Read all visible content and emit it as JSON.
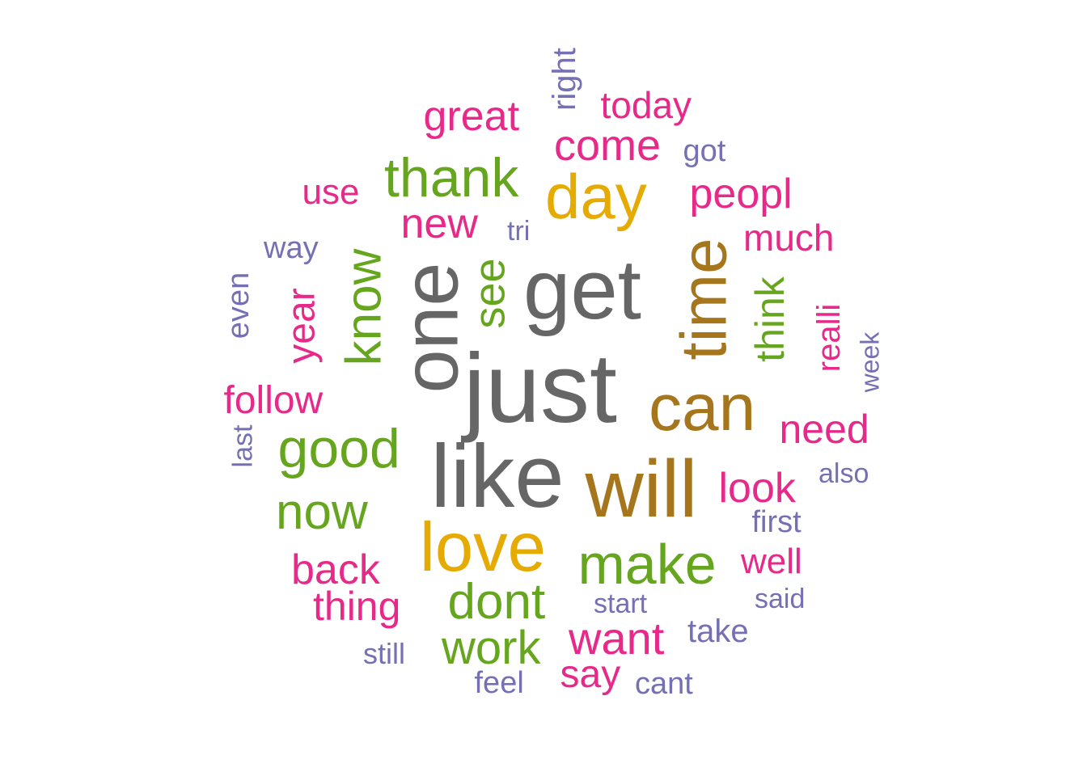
{
  "palette": {
    "gray": "#666666",
    "brown": "#A6761D",
    "gold": "#E6AB02",
    "green": "#66A61E",
    "magenta": "#E7298A",
    "purple": "#7570B3"
  },
  "words": [
    {
      "text": "just",
      "color": "gray"
    },
    {
      "text": "get",
      "color": "gray"
    },
    {
      "text": "like",
      "color": "gray"
    },
    {
      "text": "one",
      "color": "gray",
      "rotated": true
    },
    {
      "text": "will",
      "color": "brown"
    },
    {
      "text": "can",
      "color": "brown"
    },
    {
      "text": "time",
      "color": "brown",
      "rotated": true
    },
    {
      "text": "love",
      "color": "gold"
    },
    {
      "text": "day",
      "color": "gold"
    },
    {
      "text": "make",
      "color": "green"
    },
    {
      "text": "thank",
      "color": "green"
    },
    {
      "text": "good",
      "color": "green"
    },
    {
      "text": "know",
      "color": "green",
      "rotated": true
    },
    {
      "text": "now",
      "color": "green"
    },
    {
      "text": "dont",
      "color": "green"
    },
    {
      "text": "see",
      "color": "green",
      "rotated": true
    },
    {
      "text": "work",
      "color": "green"
    },
    {
      "text": "think",
      "color": "green",
      "rotated": true
    },
    {
      "text": "want",
      "color": "magenta"
    },
    {
      "text": "new",
      "color": "magenta"
    },
    {
      "text": "come",
      "color": "magenta"
    },
    {
      "text": "peopl",
      "color": "magenta"
    },
    {
      "text": "back",
      "color": "magenta"
    },
    {
      "text": "look",
      "color": "magenta"
    },
    {
      "text": "thing",
      "color": "magenta"
    },
    {
      "text": "great",
      "color": "magenta"
    },
    {
      "text": "need",
      "color": "magenta"
    },
    {
      "text": "follow",
      "color": "magenta"
    },
    {
      "text": "year",
      "color": "magenta",
      "rotated": true
    },
    {
      "text": "today",
      "color": "magenta"
    },
    {
      "text": "say",
      "color": "magenta"
    },
    {
      "text": "much",
      "color": "magenta"
    },
    {
      "text": "well",
      "color": "magenta"
    },
    {
      "text": "use",
      "color": "magenta"
    },
    {
      "text": "realli",
      "color": "magenta",
      "rotated": true
    },
    {
      "text": "right",
      "color": "purple",
      "rotated": true
    },
    {
      "text": "got",
      "color": "purple"
    },
    {
      "text": "tri",
      "color": "purple"
    },
    {
      "text": "way",
      "color": "purple"
    },
    {
      "text": "even",
      "color": "purple",
      "rotated": true
    },
    {
      "text": "last",
      "color": "purple",
      "rotated": true
    },
    {
      "text": "week",
      "color": "purple",
      "rotated": true
    },
    {
      "text": "also",
      "color": "purple"
    },
    {
      "text": "first",
      "color": "purple"
    },
    {
      "text": "said",
      "color": "purple"
    },
    {
      "text": "start",
      "color": "purple"
    },
    {
      "text": "take",
      "color": "purple"
    },
    {
      "text": "still",
      "color": "purple"
    },
    {
      "text": "feel",
      "color": "purple"
    },
    {
      "text": "cant",
      "color": "purple"
    }
  ]
}
